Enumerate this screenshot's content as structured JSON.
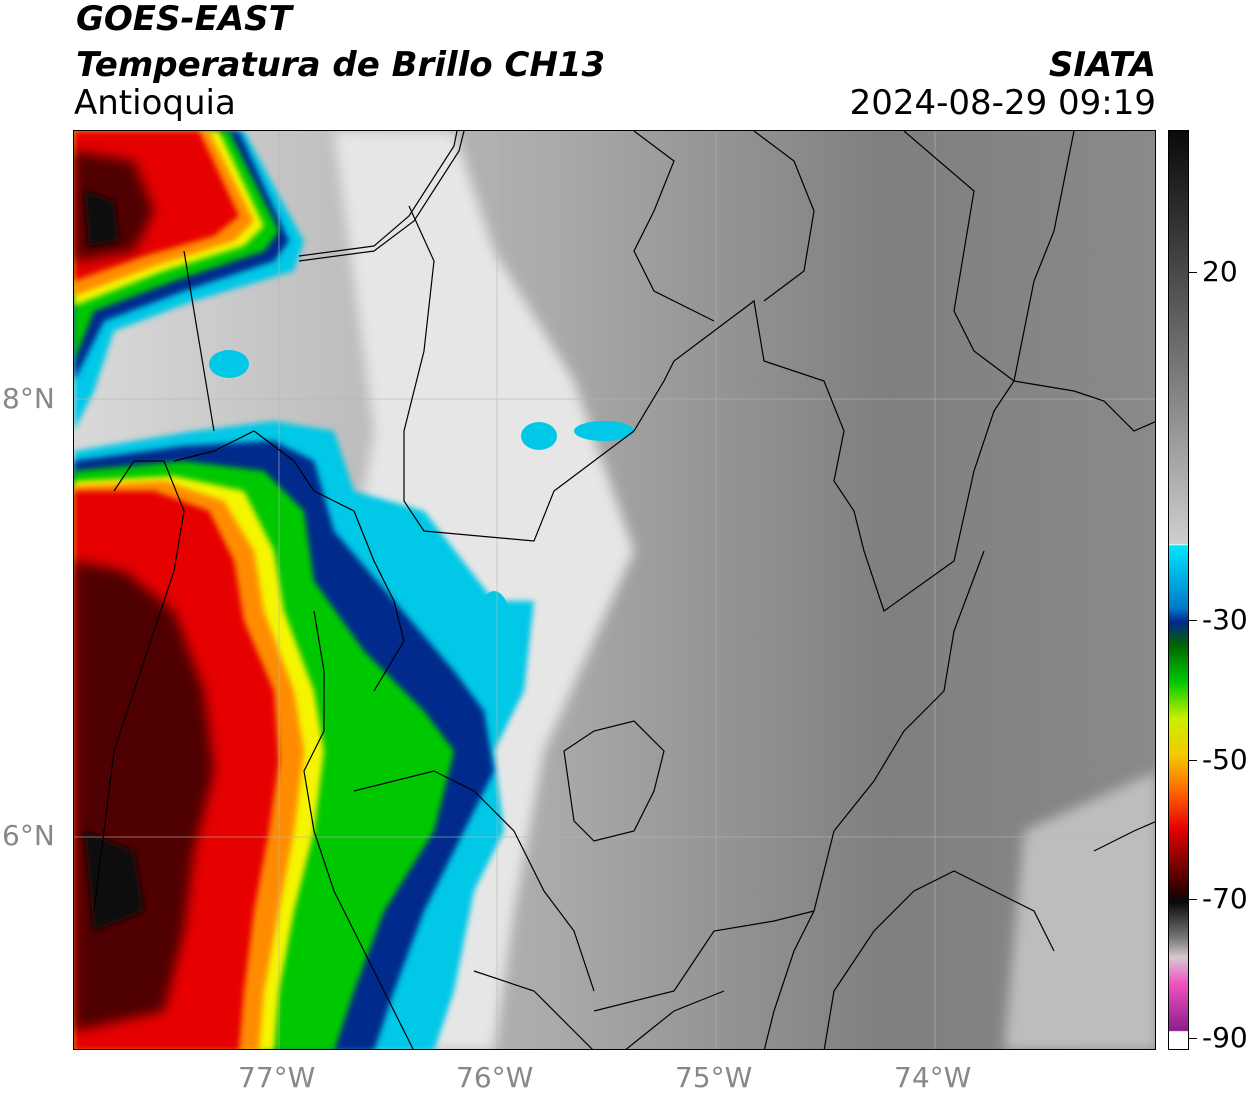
{
  "header": {
    "line1": "GOES-EAST",
    "line2": "Temperatura de Brillo CH13",
    "region": "Antioquia",
    "org": "SIATA",
    "datetime": "2024-08-29 09:19"
  },
  "axes": {
    "lon_ticks": [
      "77°W",
      "76°W",
      "75°W",
      "74°W"
    ],
    "lat_ticks": [
      "8°N",
      "6°N"
    ]
  },
  "colorbar": {
    "labels": [
      "20",
      "-30",
      "-50",
      "-70",
      "-90"
    ],
    "colors": {
      "white": "#ffffff",
      "cyan": "#00c8e6",
      "blue": "#002a8c",
      "green": "#00c800",
      "yellow": "#f5f500",
      "orange": "#ff8c00",
      "red": "#e60000",
      "darkred": "#500000",
      "black": "#0a0a0a",
      "magenta": "#c830b4"
    }
  }
}
